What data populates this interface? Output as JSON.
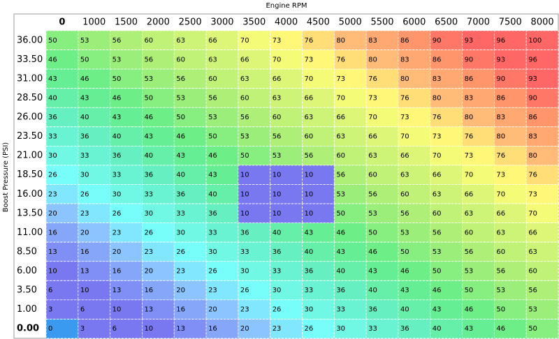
{
  "x_label": "Engine RPM",
  "y_label": "Boost Pressure (PSI)",
  "columns": [
    "0",
    "1000",
    "1500",
    "2000",
    "2500",
    "3000",
    "3500",
    "4000",
    "4500",
    "5000",
    "5500",
    "6000",
    "6500",
    "7000",
    "7500",
    "8000"
  ],
  "rows": [
    {
      "label": "36.00",
      "values": [
        50,
        53,
        56,
        60,
        63,
        66,
        70,
        73,
        76,
        80,
        83,
        86,
        90,
        93,
        96,
        100
      ]
    },
    {
      "label": "33.50",
      "values": [
        46,
        50,
        53,
        56,
        60,
        63,
        66,
        70,
        73,
        76,
        80,
        83,
        86,
        90,
        93,
        96
      ]
    },
    {
      "label": "31.00",
      "values": [
        43,
        46,
        50,
        53,
        56,
        60,
        63,
        66,
        70,
        73,
        76,
        80,
        83,
        86,
        90,
        93
      ]
    },
    {
      "label": "28.50",
      "values": [
        40,
        43,
        46,
        50,
        53,
        56,
        60,
        63,
        66,
        70,
        73,
        76,
        80,
        83,
        86,
        90
      ]
    },
    {
      "label": "26.00",
      "values": [
        36,
        40,
        43,
        46,
        50,
        53,
        56,
        60,
        63,
        66,
        70,
        73,
        76,
        80,
        83,
        86
      ]
    },
    {
      "label": "23.50",
      "values": [
        33,
        36,
        40,
        43,
        46,
        50,
        53,
        56,
        60,
        63,
        66,
        70,
        73,
        76,
        80,
        83
      ]
    },
    {
      "label": "21.00",
      "values": [
        30,
        33,
        36,
        40,
        43,
        46,
        50,
        53,
        56,
        60,
        63,
        66,
        70,
        73,
        76,
        80
      ]
    },
    {
      "label": "18.50",
      "values": [
        26,
        30,
        33,
        36,
        40,
        43,
        10,
        10,
        10,
        56,
        60,
        63,
        66,
        70,
        73,
        76
      ]
    },
    {
      "label": "16.00",
      "values": [
        23,
        26,
        30,
        33,
        36,
        40,
        10,
        10,
        10,
        53,
        56,
        60,
        63,
        66,
        70,
        73
      ]
    },
    {
      "label": "13.50",
      "values": [
        20,
        23,
        26,
        30,
        33,
        36,
        10,
        10,
        10,
        50,
        53,
        56,
        60,
        63,
        66,
        70
      ]
    },
    {
      "label": "11.00",
      "values": [
        16,
        20,
        23,
        26,
        30,
        33,
        36,
        40,
        43,
        46,
        50,
        53,
        56,
        60,
        63,
        66
      ]
    },
    {
      "label": "8.50",
      "values": [
        13,
        16,
        20,
        23,
        26,
        30,
        33,
        36,
        40,
        43,
        46,
        50,
        53,
        56,
        60,
        63
      ]
    },
    {
      "label": "6.00",
      "values": [
        10,
        13,
        16,
        20,
        23,
        26,
        30,
        33,
        36,
        40,
        43,
        46,
        50,
        53,
        56,
        60
      ]
    },
    {
      "label": "3.50",
      "values": [
        6,
        10,
        13,
        16,
        20,
        23,
        26,
        30,
        33,
        36,
        40,
        43,
        46,
        50,
        53,
        56
      ]
    },
    {
      "label": "1.00",
      "values": [
        3,
        6,
        10,
        13,
        16,
        20,
        23,
        26,
        30,
        33,
        36,
        40,
        43,
        46,
        50,
        53
      ]
    },
    {
      "label": "0.00",
      "values": [
        0,
        3,
        6,
        10,
        13,
        16,
        20,
        23,
        26,
        30,
        33,
        36,
        40,
        43,
        46,
        50
      ]
    }
  ]
}
